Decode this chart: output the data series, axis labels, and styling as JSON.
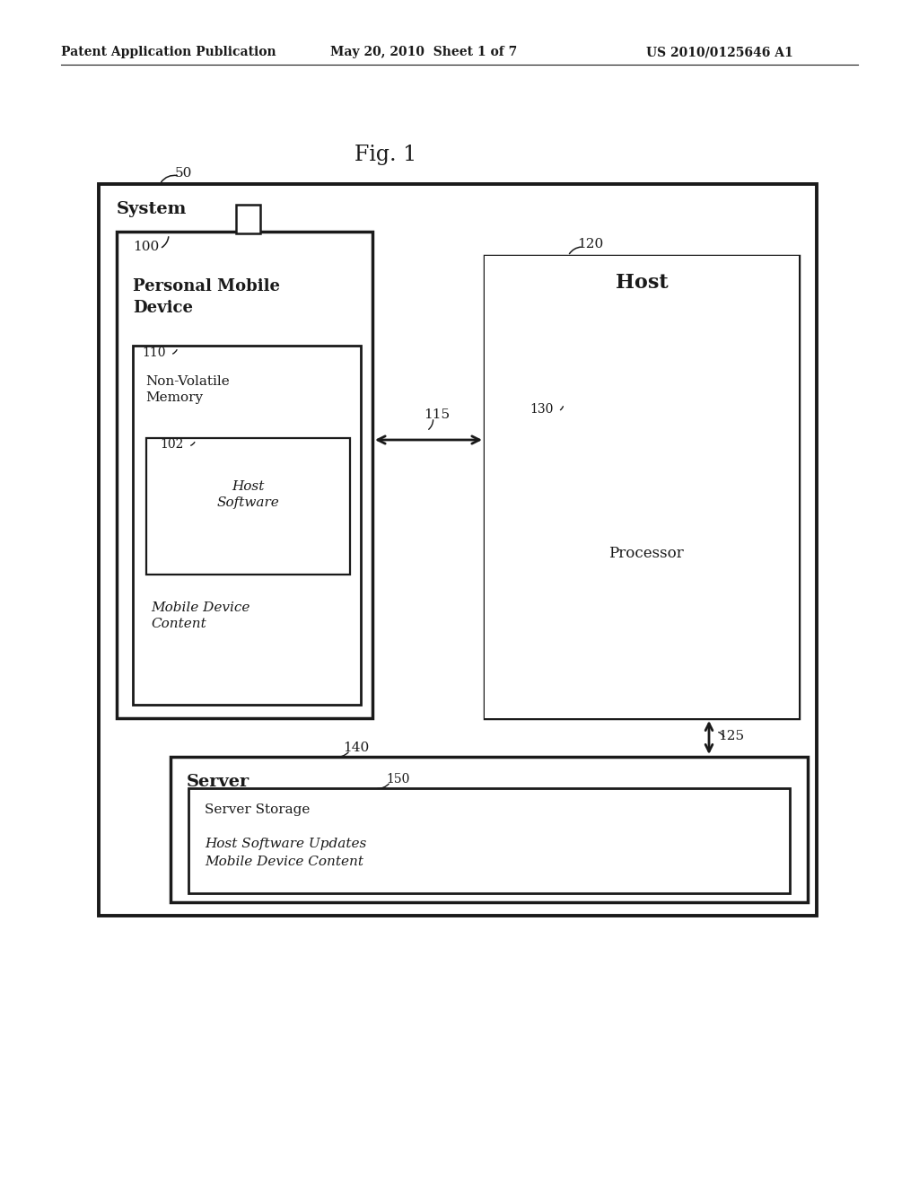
{
  "header_left": "Patent Application Publication",
  "header_center": "May 20, 2010  Sheet 1 of 7",
  "header_right": "US 2010/0125646 A1",
  "fig_title": "Fig. 1",
  "bg_color": "#ffffff",
  "line_color": "#1a1a1a",
  "labels": {
    "50": "50",
    "system": "System",
    "100": "100",
    "pmd": "Personal Mobile\nDevice",
    "120": "120",
    "host": "Host",
    "110": "110",
    "nvm": "Non-Volatile\nMemory",
    "102": "102",
    "hs": "Host\nSoftware",
    "mdc": "Mobile Device\nContent",
    "115": "115",
    "130": "130",
    "processor": "Processor",
    "125": "125",
    "140": "140",
    "server": "Server",
    "150": "150",
    "server_storage": "Server Storage",
    "server_content": "Host Software Updates\nMobile Device Content"
  }
}
